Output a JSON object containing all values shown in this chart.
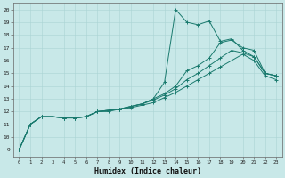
{
  "xlabel": "Humidex (Indice chaleur)",
  "bg_color": "#c8e8e8",
  "line_color": "#1a7a6e",
  "xlim": [
    -0.5,
    23.5
  ],
  "ylim": [
    8.5,
    20.5
  ],
  "xticks": [
    0,
    1,
    2,
    3,
    4,
    5,
    6,
    7,
    8,
    9,
    10,
    11,
    12,
    13,
    14,
    15,
    16,
    17,
    18,
    19,
    20,
    21,
    22,
    23
  ],
  "yticks": [
    9,
    10,
    11,
    12,
    13,
    14,
    15,
    16,
    17,
    18,
    19,
    20
  ],
  "series": [
    {
      "x": [
        0,
        1,
        2,
        3,
        4,
        5,
        6,
        7,
        8,
        9,
        10,
        11,
        12,
        13,
        14,
        15,
        16,
        17,
        18,
        19,
        20,
        21,
        22,
        23
      ],
      "y": [
        9,
        11,
        11.6,
        11.6,
        11.5,
        11.5,
        11.6,
        12.0,
        12.1,
        12.2,
        12.4,
        12.6,
        13.0,
        14.3,
        20.0,
        19.0,
        18.8,
        19.1,
        17.5,
        17.7,
        16.8,
        16.3,
        15.0,
        14.8
      ]
    },
    {
      "x": [
        0,
        1,
        2,
        3,
        4,
        5,
        6,
        7,
        8,
        9,
        10,
        11,
        12,
        13,
        14,
        15,
        16,
        17,
        18,
        19,
        20,
        21,
        22,
        23
      ],
      "y": [
        9,
        11,
        11.6,
        11.6,
        11.5,
        11.5,
        11.6,
        12.0,
        12.1,
        12.2,
        12.4,
        12.6,
        13.0,
        13.4,
        14.0,
        15.2,
        15.6,
        16.2,
        17.4,
        17.6,
        17.0,
        16.8,
        15.0,
        14.8
      ]
    },
    {
      "x": [
        0,
        1,
        2,
        3,
        4,
        5,
        6,
        7,
        8,
        9,
        10,
        11,
        12,
        13,
        14,
        15,
        16,
        17,
        18,
        19,
        20,
        21,
        22,
        23
      ],
      "y": [
        9,
        11,
        11.6,
        11.6,
        11.5,
        11.5,
        11.6,
        12.0,
        12.1,
        12.2,
        12.4,
        12.6,
        12.9,
        13.3,
        13.8,
        14.5,
        15.0,
        15.6,
        16.2,
        16.8,
        16.6,
        16.3,
        15.0,
        14.8
      ]
    },
    {
      "x": [
        0,
        1,
        2,
        3,
        4,
        5,
        6,
        7,
        8,
        9,
        10,
        11,
        12,
        13,
        14,
        15,
        16,
        17,
        18,
        19,
        20,
        21,
        22,
        23
      ],
      "y": [
        9,
        11,
        11.6,
        11.6,
        11.5,
        11.5,
        11.6,
        12.0,
        12.0,
        12.2,
        12.3,
        12.5,
        12.7,
        13.1,
        13.5,
        14.0,
        14.5,
        15.0,
        15.5,
        16.0,
        16.5,
        16.0,
        14.8,
        14.5
      ]
    }
  ]
}
